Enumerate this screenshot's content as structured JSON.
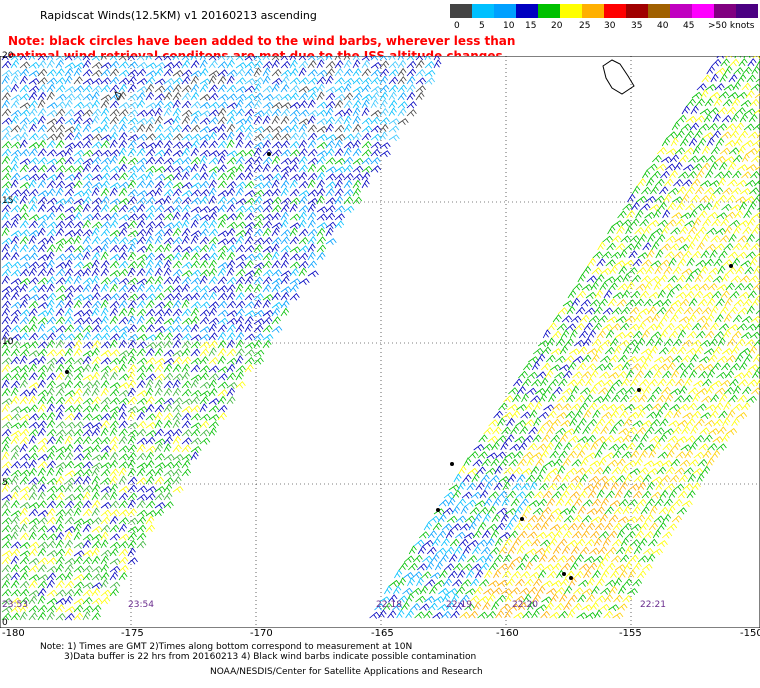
{
  "title": "Rapidscat Winds(12.5KM) v1 20160213 ascending",
  "note": "Note: black circles have been added to the wind barbs, wherever less than\n     optimal wind retrieval conditons are met due to the ISS altitude changes.",
  "legend": {
    "labels": [
      "0",
      "5",
      "10",
      "15",
      "20",
      "25",
      "30",
      "35",
      "40",
      "45",
      ">50 knots"
    ],
    "colors": [
      "#444444",
      "#00c0ff",
      "#00a0ff",
      "#0000c0",
      "#00c000",
      "#ffff00",
      "#ffb000",
      "#ff0000",
      "#a00000",
      "#a06000",
      "#c000c0",
      "#ff00ff",
      "#800080",
      "#4b0082"
    ]
  },
  "axes": {
    "lat_labels": [
      "20",
      "15",
      "10",
      "5",
      "0"
    ],
    "lon_labels": [
      "-180",
      "-175",
      "-170",
      "-165",
      "-160",
      "-155",
      "-150"
    ]
  },
  "swath_times": [
    "23:53",
    "23:54",
    "22:18",
    "22:19",
    "22:20",
    "22:21"
  ],
  "footnote_line1": "Note: 1) Times are GMT  2)Times along bottom correspond to measurement at 10N",
  "footnote_line2": "3)Data buffer is 22 hrs from 20160213  4) Black wind barbs indicate possible contamination",
  "credit": "NOAA/NESDIS/Center for Satellite Applications and Research"
}
